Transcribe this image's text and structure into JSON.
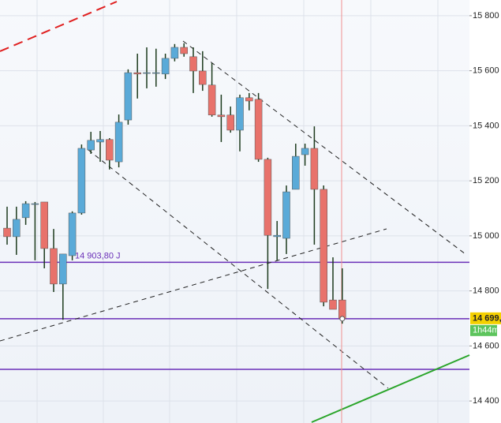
{
  "chart_data": {
    "type": "candlestick",
    "open": [
      15028,
      14997,
      15066,
      15117,
      15123,
      14954,
      14825,
      14928,
      15083,
      15312,
      15341,
      15350,
      15269,
      15421,
      15593,
      15591,
      15591,
      15588,
      15645,
      15685,
      15651,
      15599,
      15548,
      15439,
      15439,
      15384,
      15502,
      15496,
      15278,
      14997,
      14991,
      15169,
      15295,
      15318,
      15169,
      14767,
      14767
    ],
    "high": [
      15106,
      15106,
      15126,
      15123,
      15123,
      15025,
      14934,
      15089,
      15332,
      15378,
      15381,
      15355,
      15441,
      15605,
      15662,
      15685,
      15680,
      15662,
      15697,
      15700,
      15685,
      15671,
      15628,
      15513,
      15470,
      15513,
      15519,
      15519,
      15284,
      15054,
      15183,
      15335,
      15335,
      15398,
      15183,
      14922,
      14882
    ],
    "low": [
      14968,
      14931,
      15040,
      14911,
      14882,
      14796,
      14695,
      14911,
      15077,
      15298,
      15269,
      15241,
      15249,
      15404,
      15499,
      15536,
      15542,
      15570,
      15634,
      15651,
      15519,
      15527,
      15433,
      15341,
      15375,
      15307,
      15456,
      15269,
      14807,
      14911,
      14934,
      15169,
      15255,
      14968,
      14744,
      14733,
      14681
    ],
    "close": [
      14997,
      15060,
      15117,
      15117,
      14954,
      14825,
      14934,
      15083,
      15318,
      15347,
      15350,
      15275,
      15413,
      15593,
      15588,
      15593,
      15593,
      15645,
      15685,
      15662,
      15599,
      15550,
      15439,
      15433,
      15384,
      15502,
      15490,
      15278,
      15002,
      15002,
      15160,
      15289,
      15318,
      15169,
      14759,
      14733,
      14699
    ],
    "up_color": "#5aaad8",
    "down_color": "#e8726b",
    "ylim": [
      14320,
      15857
    ],
    "yticks": [
      {
        "value": 14400,
        "label": "14 400"
      },
      {
        "value": 14600,
        "label": "14 600"
      },
      {
        "value": 14800,
        "label": "14 800"
      },
      {
        "value": 15000,
        "label": "15 000"
      },
      {
        "value": 15200,
        "label": "15 200"
      },
      {
        "value": 15400,
        "label": "15 400"
      },
      {
        "value": 15600,
        "label": "15 600"
      },
      {
        "value": 15800,
        "label": "15 800"
      }
    ],
    "grid": true,
    "levels": [
      {
        "value": 14903.8,
        "label": "14 903,80 J"
      },
      {
        "value": 14699,
        "label": "14 699,"
      },
      {
        "value": 14515
      }
    ],
    "level_color": "#6a2fb8",
    "countdown": "1h44m"
  }
}
